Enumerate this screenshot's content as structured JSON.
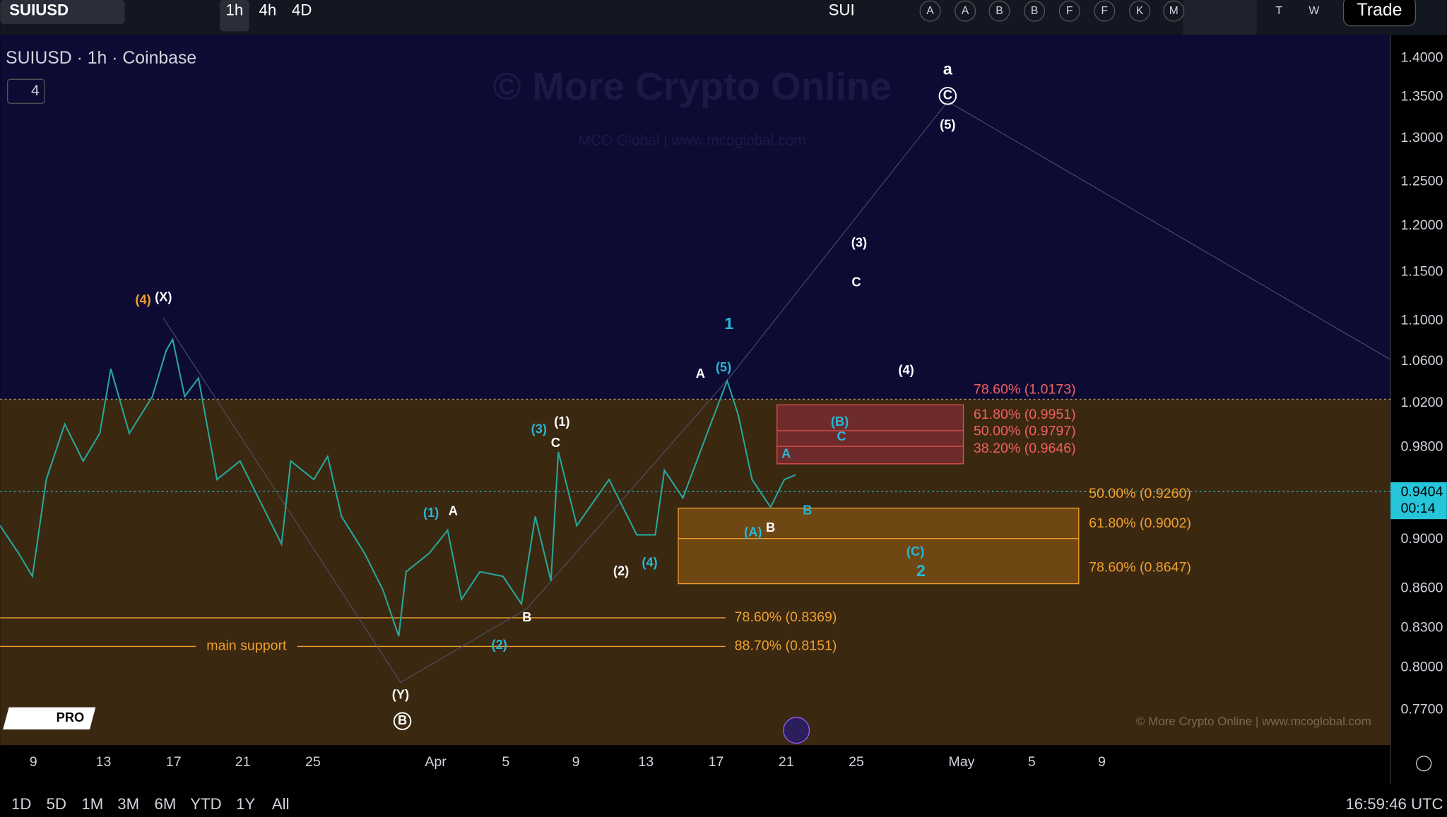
{
  "toolbar": {
    "symbol": "SUIUSD",
    "intervals": [
      "1h",
      "4h",
      "4D"
    ],
    "symbol_short": "SUI",
    "compare_letters": [
      "A",
      "A",
      "B",
      "B",
      "F",
      "F",
      "K",
      "M"
    ],
    "more_letters": [
      "T",
      "W"
    ],
    "trade": "Trade"
  },
  "chart": {
    "title": "SUIUSD · 1h · Coinbase",
    "indicators_count": "4",
    "watermark": "© More Crypto Online",
    "watermark_sub": "MCO Global  |  www.mcoglobal.com",
    "price_ticks": [
      "1.4000",
      "1.3500",
      "1.3000",
      "1.2500",
      "1.2000",
      "1.1500",
      "1.1000",
      "1.0600",
      "1.0200",
      "0.9800",
      "0.9000",
      "0.8600",
      "0.8300",
      "0.8000",
      "0.7700"
    ],
    "last_price": "0.9404",
    "countdown": "00:14",
    "date_ticks": [
      "9",
      "13",
      "17",
      "21",
      "25",
      "Apr",
      "5",
      "9",
      "13",
      "17",
      "21",
      "25",
      "May",
      "5",
      "9"
    ],
    "wave_labels": [
      "(4)",
      "(X)",
      "a",
      "C",
      "(5)",
      "(3)",
      "C",
      "1",
      "(4)",
      "A",
      "(5)",
      "(B)",
      "C",
      "A",
      "B",
      "(A)",
      "B",
      "(C)",
      "2",
      "(3)",
      "(1)",
      "C",
      "(1)",
      "A",
      "(2)",
      "(4)",
      "B",
      "(2)",
      "(Y)",
      "B"
    ],
    "fib_levels": [
      "78.60% (1.0173)",
      "61.80% (0.9951)",
      "50.00% (0.9797)",
      "38.20% (0.9646)",
      "50.00% (0.9260)",
      "61.80% (0.9002)",
      "78.60% (0.8647)",
      "78.60% (0.8369)",
      "88.70% (0.8151)"
    ],
    "support_label": "main support",
    "badge": "PRO",
    "copyright": "© More Crypto Online  |  www.mcoglobal.com"
  },
  "bottom_bar": {
    "ranges": [
      "1D",
      "5D",
      "1M",
      "3M",
      "6M",
      "YTD",
      "1Y",
      "All"
    ],
    "clock": "16:59:46 UTC"
  }
}
